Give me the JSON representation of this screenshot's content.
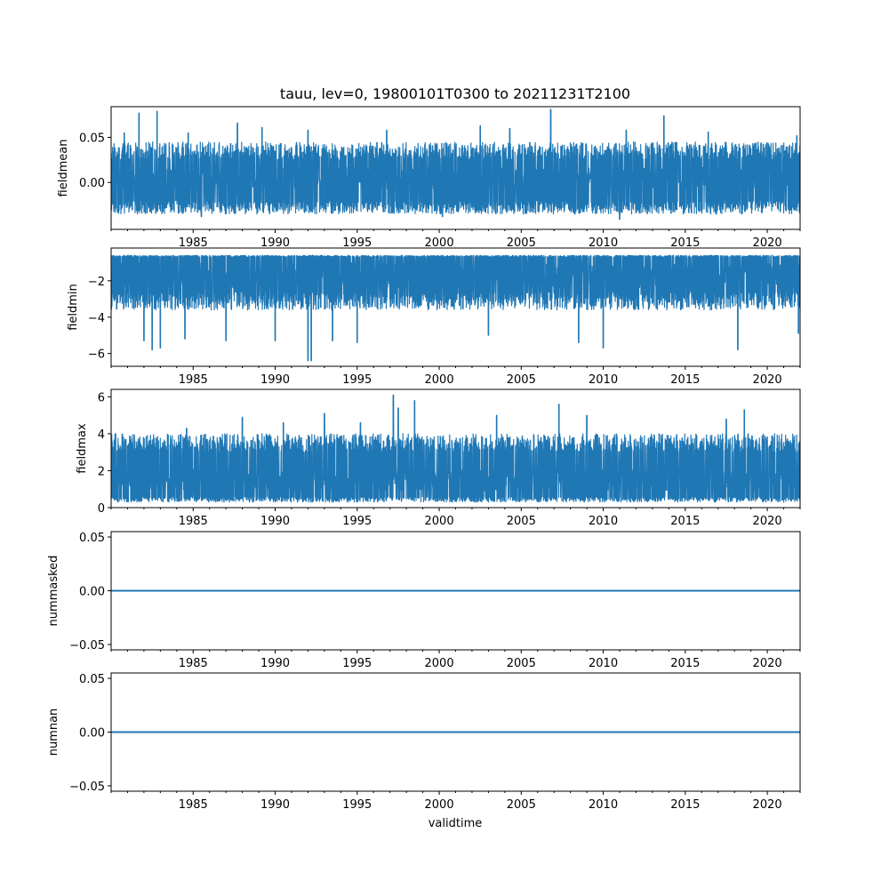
{
  "chart_data": {
    "type": "line",
    "title": "tauu, lev=0, 19800101T0300 to 20211231T2100",
    "xlabel": "validtime",
    "x_tick_labels": [
      "1985",
      "1990",
      "1995",
      "2000",
      "2005",
      "2010",
      "2015",
      "2020"
    ],
    "x_tick_values": [
      1985,
      1990,
      1995,
      2000,
      2005,
      2010,
      2015,
      2020
    ],
    "xlim": [
      1980.0,
      2022.0
    ],
    "grid": false,
    "line_color": "#1f77b4",
    "subplots": [
      {
        "ylabel": "fieldmean",
        "ylim": [
          -0.052,
          0.084
        ],
        "y_ticks": [
          0.0,
          0.05
        ],
        "y_tick_labels": [
          "0.00",
          "0.05"
        ],
        "series": [
          {
            "base": 0.005,
            "amplitude": 0.012,
            "low_range": [
              -0.035,
              -0.02
            ],
            "high_range": [
              0.025,
              0.045
            ],
            "spikes": [
              {
                "x": 1980.8,
                "y": 0.055
              },
              {
                "x": 1981.7,
                "y": 0.077
              },
              {
                "x": 1982.8,
                "y": 0.079
              },
              {
                "x": 1984.7,
                "y": 0.055
              },
              {
                "x": 1987.7,
                "y": 0.066
              },
              {
                "x": 1989.2,
                "y": 0.061
              },
              {
                "x": 1992.0,
                "y": 0.058
              },
              {
                "x": 1996.8,
                "y": 0.058
              },
              {
                "x": 2002.5,
                "y": 0.063
              },
              {
                "x": 2004.3,
                "y": 0.06
              },
              {
                "x": 2006.8,
                "y": 0.081
              },
              {
                "x": 2011.4,
                "y": 0.058
              },
              {
                "x": 2013.7,
                "y": 0.074
              },
              {
                "x": 2016.4,
                "y": 0.056
              },
              {
                "x": 2021.8,
                "y": 0.052
              },
              {
                "x": 2000.2,
                "y": -0.038
              },
              {
                "x": 2011.0,
                "y": -0.041
              },
              {
                "x": 1985.5,
                "y": -0.038
              }
            ]
          }
        ]
      },
      {
        "ylabel": "fieldmin",
        "ylim": [
          -6.7,
          -0.2
        ],
        "y_ticks": [
          -6,
          -4,
          -2
        ],
        "y_tick_labels": [
          "−6",
          "−4",
          "−2"
        ],
        "series": [
          {
            "base": -1.7,
            "amplitude": 0.7,
            "low_range": [
              -3.6,
              -2.6
            ],
            "high_range": [
              -0.7,
              -0.6
            ],
            "spikes": [
              {
                "x": 1982.0,
                "y": -5.3
              },
              {
                "x": 1982.5,
                "y": -5.8
              },
              {
                "x": 1983.0,
                "y": -5.7
              },
              {
                "x": 1984.5,
                "y": -5.2
              },
              {
                "x": 1987.0,
                "y": -5.3
              },
              {
                "x": 1990.0,
                "y": -5.3
              },
              {
                "x": 1992.0,
                "y": -6.4
              },
              {
                "x": 1992.2,
                "y": -6.4
              },
              {
                "x": 1993.5,
                "y": -5.3
              },
              {
                "x": 1995.0,
                "y": -5.4
              },
              {
                "x": 2003.0,
                "y": -5.0
              },
              {
                "x": 2008.5,
                "y": -5.4
              },
              {
                "x": 2010.0,
                "y": -5.7
              },
              {
                "x": 2018.2,
                "y": -5.8
              },
              {
                "x": 2021.9,
                "y": -4.9
              }
            ]
          }
        ]
      },
      {
        "ylabel": "fieldmax",
        "ylim": [
          0.0,
          6.4
        ],
        "y_ticks": [
          0,
          2,
          4,
          6
        ],
        "y_tick_labels": [
          "0",
          "2",
          "4",
          "6"
        ],
        "series": [
          {
            "base": 1.5,
            "amplitude": 0.6,
            "low_range": [
              0.3,
              0.6
            ],
            "high_range": [
              3.0,
              4.0
            ],
            "spikes": [
              {
                "x": 1984.6,
                "y": 4.3
              },
              {
                "x": 1988.0,
                "y": 4.9
              },
              {
                "x": 1990.5,
                "y": 4.6
              },
              {
                "x": 1993.0,
                "y": 5.1
              },
              {
                "x": 1995.2,
                "y": 4.6
              },
              {
                "x": 1997.2,
                "y": 6.1
              },
              {
                "x": 1997.5,
                "y": 5.4
              },
              {
                "x": 1998.5,
                "y": 5.8
              },
              {
                "x": 2007.3,
                "y": 5.6
              },
              {
                "x": 2009.0,
                "y": 5.0
              },
              {
                "x": 2017.5,
                "y": 4.8
              },
              {
                "x": 2018.6,
                "y": 5.3
              },
              {
                "x": 2003.5,
                "y": 5.0
              }
            ]
          }
        ]
      },
      {
        "ylabel": "nummasked",
        "ylim": [
          -0.055,
          0.055
        ],
        "y_ticks": [
          -0.05,
          0.0,
          0.05
        ],
        "y_tick_labels": [
          "−0.05",
          "0.00",
          "0.05"
        ],
        "series": [
          {
            "constant": 0.0
          }
        ]
      },
      {
        "ylabel": "numnan",
        "ylim": [
          -0.055,
          0.055
        ],
        "y_ticks": [
          -0.05,
          0.0,
          0.05
        ],
        "y_tick_labels": [
          "−0.05",
          "0.00",
          "0.05"
        ],
        "series": [
          {
            "constant": 0.0
          }
        ]
      }
    ]
  }
}
